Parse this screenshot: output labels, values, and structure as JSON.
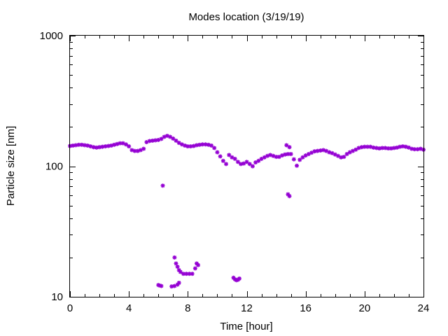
{
  "chart_data": {
    "type": "scatter",
    "title": "Modes location (3/19/19)",
    "xlabel": "Time [hour]",
    "ylabel": "Particle size [nm]",
    "xlim": [
      0,
      24
    ],
    "ylim": [
      10,
      1000
    ],
    "y_scale": "log",
    "grid": false,
    "legend": "none",
    "x_ticks": [
      0,
      4,
      8,
      12,
      16,
      20,
      24
    ],
    "x_tick_labels": [
      "0",
      "4",
      "8",
      "12",
      "16",
      "20",
      "24"
    ],
    "y_ticks": [
      10,
      100,
      1000
    ],
    "y_tick_labels": [
      "10",
      "100",
      "1000"
    ],
    "marker_color": "#9400d3",
    "series": [
      {
        "x": [
          0.0,
          0.2,
          0.4,
          0.6,
          0.8,
          1.0,
          1.2,
          1.4,
          1.6,
          1.8,
          2.0,
          2.2,
          2.4,
          2.6,
          2.8,
          3.0,
          3.2,
          3.4,
          3.6,
          3.8,
          4.0,
          4.2,
          4.4,
          4.6,
          4.8,
          5.0,
          5.2,
          5.4,
          5.6,
          5.8,
          6.0,
          6.2,
          6.4,
          6.6,
          6.8,
          7.0,
          7.2,
          7.4,
          7.6,
          7.8,
          8.0,
          8.2,
          8.4,
          8.6,
          8.8,
          9.0,
          9.2,
          9.4,
          9.6,
          9.8,
          10.0,
          10.2,
          10.4,
          10.6,
          10.8,
          11.0,
          11.2,
          11.4,
          11.6,
          11.8,
          12.0,
          12.2,
          12.4,
          12.6,
          12.8,
          13.0,
          13.2,
          13.4,
          13.6,
          13.8,
          14.0,
          14.2,
          14.4,
          14.6,
          14.8,
          15.0,
          15.2,
          15.4,
          15.6,
          15.8,
          16.0,
          16.2,
          16.4,
          16.6,
          16.8,
          17.0,
          17.2,
          17.4,
          17.6,
          17.8,
          18.0,
          18.2,
          18.4,
          18.6,
          18.8,
          19.0,
          19.2,
          19.4,
          19.6,
          19.8,
          20.0,
          20.2,
          20.4,
          20.6,
          20.8,
          21.0,
          21.2,
          21.4,
          21.6,
          21.8,
          22.0,
          22.2,
          22.4,
          22.6,
          22.8,
          23.0,
          23.2,
          23.4,
          23.6,
          23.8,
          24.0,
          14.7,
          14.9,
          6.3,
          14.8,
          14.9,
          7.1,
          7.2,
          7.3,
          7.4,
          7.5,
          7.7,
          7.9,
          8.1,
          8.3,
          8.5,
          8.6,
          8.7,
          6.0,
          6.1,
          6.2,
          6.9,
          7.1,
          7.3,
          7.4,
          11.1,
          11.2,
          11.3,
          11.4,
          11.5
        ],
        "y": [
          143,
          144,
          145,
          146,
          146,
          145,
          144,
          142,
          140,
          139,
          140,
          141,
          142,
          143,
          144,
          146,
          148,
          150,
          150,
          147,
          142,
          133,
          131,
          131,
          133,
          136,
          153,
          156,
          157,
          158,
          159,
          162,
          168,
          171,
          168,
          163,
          157,
          151,
          147,
          144,
          142,
          142,
          143,
          145,
          146,
          147,
          147,
          146,
          144,
          138,
          128,
          119,
          110,
          104,
          122,
          117,
          114,
          108,
          104,
          105,
          108,
          104,
          100,
          107,
          110,
          114,
          117,
          120,
          122,
          120,
          118,
          118,
          121,
          123,
          124,
          124,
          113,
          101,
          112,
          117,
          121,
          124,
          127,
          130,
          131,
          132,
          133,
          131,
          128,
          126,
          123,
          120,
          117,
          118,
          124,
          128,
          131,
          134,
          138,
          140,
          141,
          141,
          141,
          139,
          138,
          137,
          138,
          138,
          137,
          137,
          138,
          139,
          141,
          142,
          141,
          139,
          136,
          135,
          135,
          136,
          134,
          145,
          140,
          71,
          61,
          59,
          20,
          18,
          17,
          16,
          15.5,
          15,
          15,
          15,
          15,
          16.5,
          18,
          17.5,
          12.3,
          12.2,
          12.1,
          12.0,
          12.1,
          12.4,
          12.8,
          14,
          13.6,
          13.4,
          13.5,
          13.8
        ]
      }
    ]
  }
}
